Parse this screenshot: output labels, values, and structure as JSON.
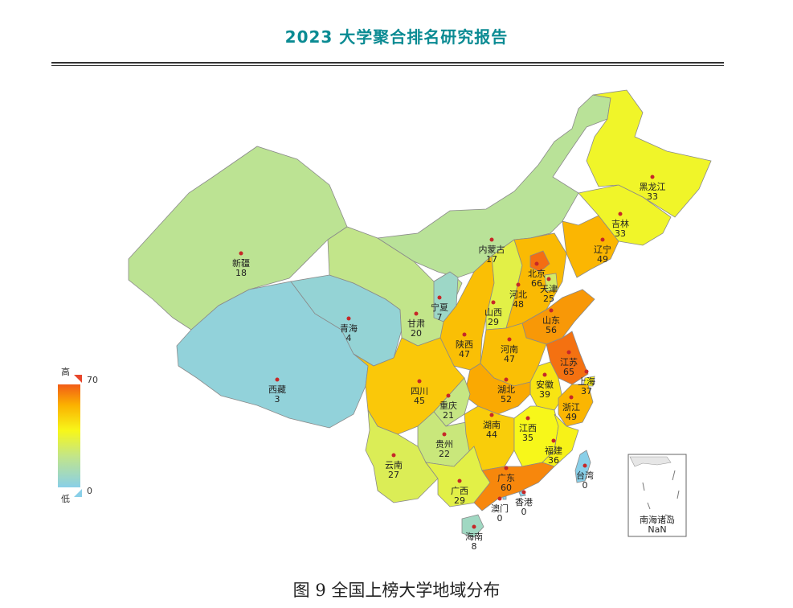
{
  "header": {
    "title": "2023 大学聚合排名研究报告"
  },
  "figure": {
    "caption": "图 9  全国上榜大学地域分布"
  },
  "legend": {
    "high_label": "高",
    "low_label": "低",
    "max": 70,
    "min": 0
  },
  "inset": {
    "name": "南海诸岛",
    "value": "NaN"
  },
  "provinces": [
    {
      "id": "xinjiang",
      "name": "新疆",
      "value": 18
    },
    {
      "id": "xizang",
      "name": "西藏",
      "value": 3
    },
    {
      "id": "qinghai",
      "name": "青海",
      "value": 4
    },
    {
      "id": "gansu",
      "name": "甘肃",
      "value": 20
    },
    {
      "id": "neimenggu",
      "name": "内蒙古",
      "value": 17
    },
    {
      "id": "ningxia",
      "name": "宁夏",
      "value": 7
    },
    {
      "id": "shaanxi",
      "name": "陕西",
      "value": 47
    },
    {
      "id": "shanxi",
      "name": "山西",
      "value": 29
    },
    {
      "id": "hebei",
      "name": "河北",
      "value": 48
    },
    {
      "id": "beijing",
      "name": "北京",
      "value": 66
    },
    {
      "id": "tianjin",
      "name": "天津",
      "value": 25
    },
    {
      "id": "liaoning",
      "name": "辽宁",
      "value": 49
    },
    {
      "id": "jilin",
      "name": "吉林",
      "value": 33
    },
    {
      "id": "heilongjiang",
      "name": "黑龙江",
      "value": 33
    },
    {
      "id": "shandong",
      "name": "山东",
      "value": 56
    },
    {
      "id": "henan",
      "name": "河南",
      "value": 47
    },
    {
      "id": "jiangsu",
      "name": "江苏",
      "value": 65
    },
    {
      "id": "shanghai",
      "name": "上海",
      "value": 37
    },
    {
      "id": "anhui",
      "name": "安徽",
      "value": 39
    },
    {
      "id": "zhejiang",
      "name": "浙江",
      "value": 49
    },
    {
      "id": "hubei",
      "name": "湖北",
      "value": 52
    },
    {
      "id": "sichuan",
      "name": "四川",
      "value": 45
    },
    {
      "id": "chongqing",
      "name": "重庆",
      "value": 21
    },
    {
      "id": "guizhou",
      "name": "贵州",
      "value": 22
    },
    {
      "id": "hunan",
      "name": "湖南",
      "value": 44
    },
    {
      "id": "jiangxi",
      "name": "江西",
      "value": 35
    },
    {
      "id": "fujian",
      "name": "福建",
      "value": 36
    },
    {
      "id": "yunnan",
      "name": "云南",
      "value": 27
    },
    {
      "id": "guangxi",
      "name": "广西",
      "value": 29
    },
    {
      "id": "guangdong",
      "name": "广东",
      "value": 60
    },
    {
      "id": "hainan",
      "name": "海南",
      "value": 8
    },
    {
      "id": "taiwan",
      "name": "台湾",
      "value": 0
    },
    {
      "id": "xianggang",
      "name": "香港",
      "value": 0
    },
    {
      "id": "aomen",
      "name": "澳门",
      "value": 0
    }
  ]
}
